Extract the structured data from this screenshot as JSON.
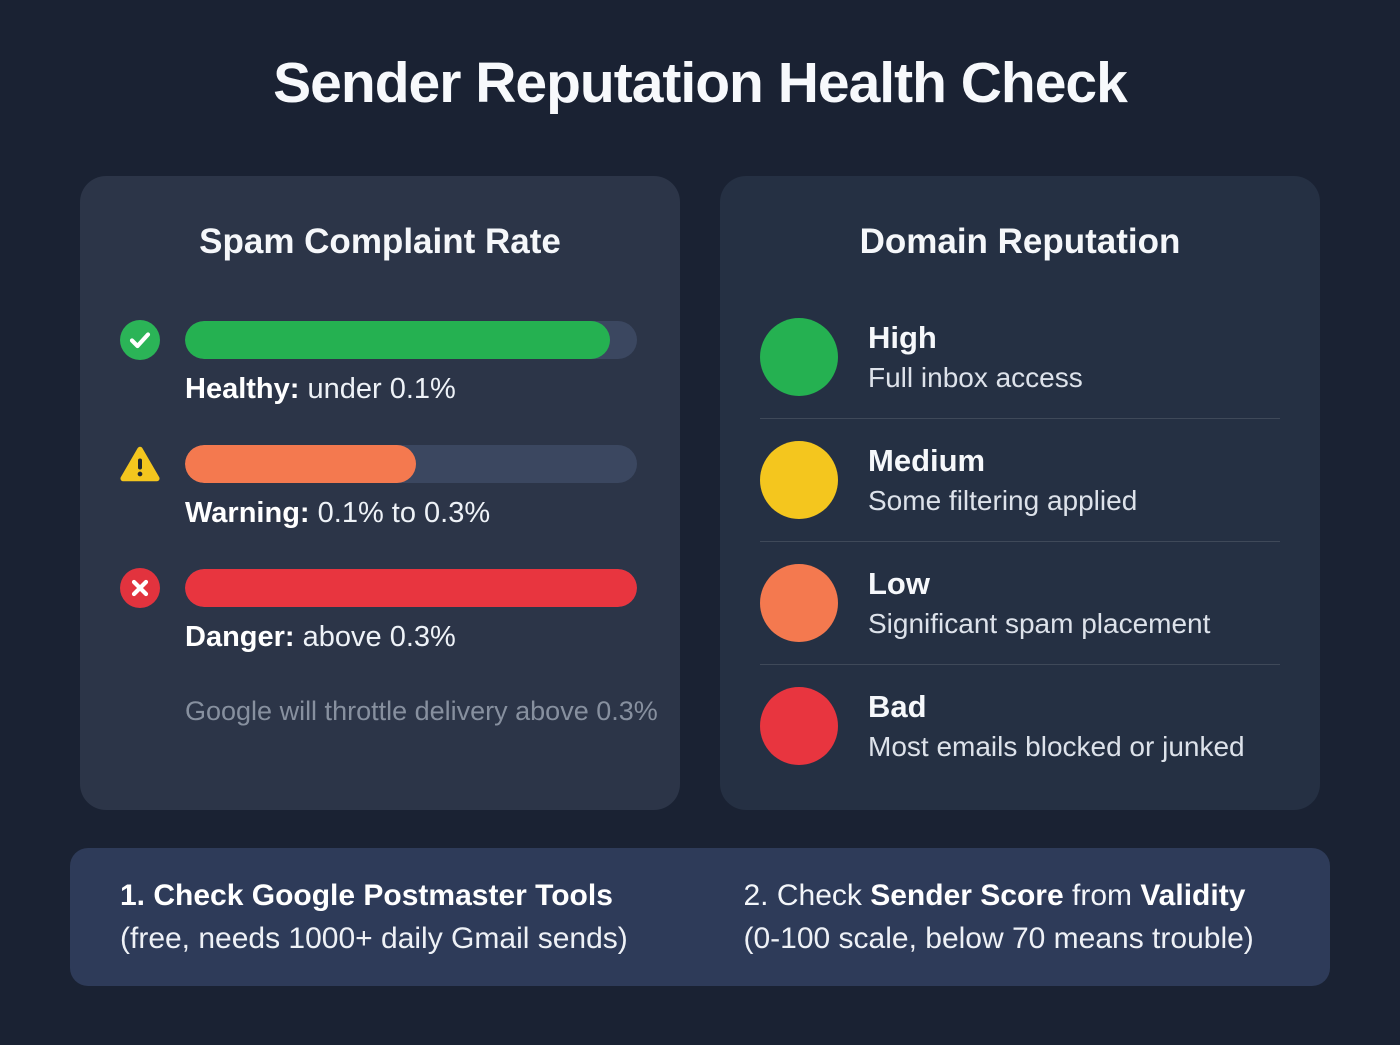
{
  "title": "Sender Reputation Health Check",
  "colors": {
    "green": "#25b151",
    "yellow": "#f4c61e",
    "orange": "#f4794f",
    "red": "#e8353f"
  },
  "spam_card": {
    "heading": "Spam Complaint Rate",
    "rows": [
      {
        "icon": "check-circle-icon",
        "label_bold": "Healthy:",
        "label_rest": " under 0.1%",
        "fill_percent": 94,
        "color": "#25b151"
      },
      {
        "icon": "warning-triangle-icon",
        "label_bold": "Warning:",
        "label_rest": " 0.1% to 0.3%",
        "fill_percent": 51,
        "color": "#f4794f"
      },
      {
        "icon": "x-circle-icon",
        "label_bold": "Danger:",
        "label_rest": " above 0.3%",
        "fill_percent": 100,
        "color": "#e8353f"
      }
    ],
    "note": "Google will throttle delivery above 0.3%"
  },
  "domain_card": {
    "heading": "Domain Reputation",
    "rows": [
      {
        "level": "High",
        "desc": "Full inbox access",
        "color": "#25b151"
      },
      {
        "level": "Medium",
        "desc": "Some filtering applied",
        "color": "#f4c61e"
      },
      {
        "level": "Low",
        "desc": "Significant spam placement",
        "color": "#f4794f"
      },
      {
        "level": "Bad",
        "desc": "Most emails blocked or junked",
        "color": "#e8353f"
      }
    ]
  },
  "footer": {
    "step1": {
      "bold": "1. Check Google Postmaster Tools",
      "line2": "(free, needs 1000+ daily Gmail sends)"
    },
    "step2": {
      "prefix": "2. Check ",
      "bold1": "Sender Score",
      "mid": " from ",
      "bold2": "Validity",
      "line2": "(0-100 scale, below 70 means trouble)"
    }
  }
}
